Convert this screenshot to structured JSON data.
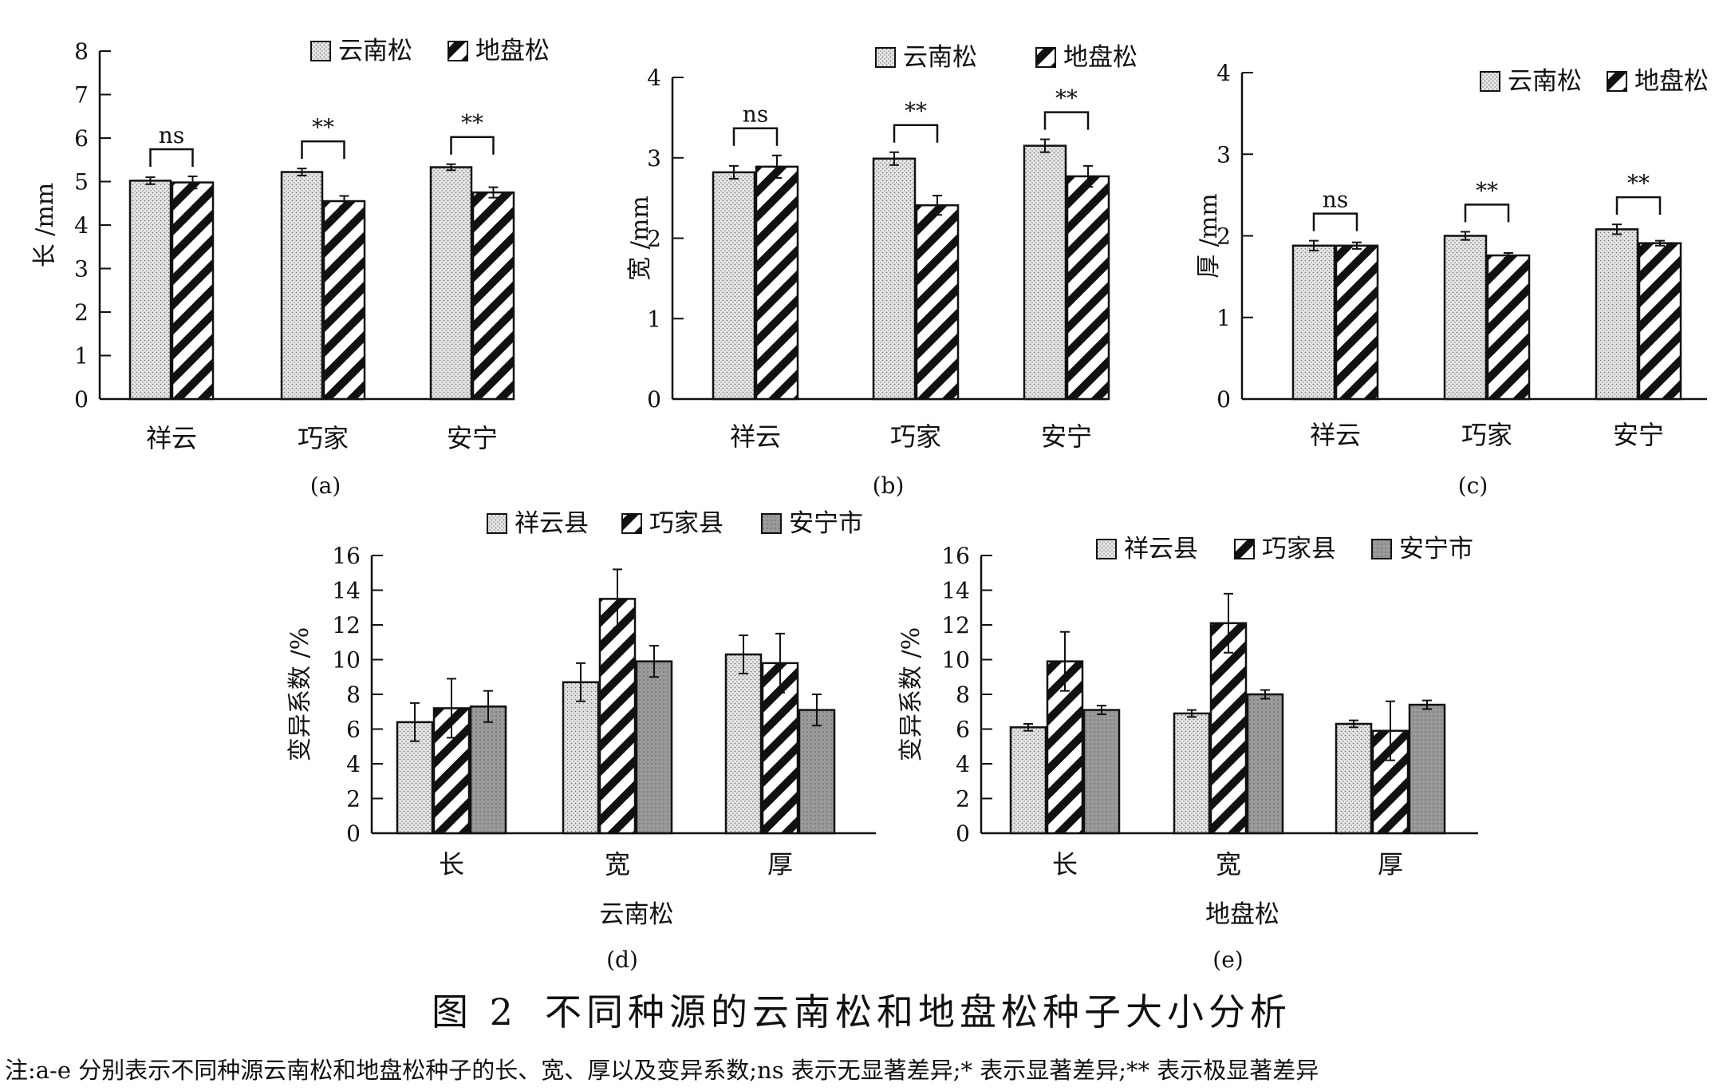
{
  "figure": {
    "number": "图 2",
    "title": "不同种源的云南松和地盘松种子大小分析",
    "note": "注:a-e 分别表示不同种源云南松和地盘松种子的长、宽、厚以及变异系数;ns 表示无显著差异;* 表示显著差异;** 表示极显著差异"
  },
  "colors": {
    "ink": "#111111",
    "dotted_fill": "#e6e6e6",
    "solid_fill": "#9a9a9a"
  },
  "chart_data": [
    {
      "id": "a",
      "panel_label": "(a)",
      "type": "bar",
      "ylabel": "长 /mm",
      "ylim": [
        0,
        8
      ],
      "yticks": [
        0,
        1,
        2,
        3,
        4,
        5,
        6,
        7,
        8
      ],
      "categories": [
        "祥云",
        "巧家",
        "安宁"
      ],
      "series": [
        {
          "name": "云南松",
          "pattern": "dotted",
          "values": [
            5.02,
            5.22,
            5.33
          ],
          "errors": [
            0.08,
            0.08,
            0.07
          ]
        },
        {
          "name": "地盘松",
          "pattern": "hatched",
          "values": [
            4.98,
            4.55,
            4.75
          ],
          "errors": [
            0.14,
            0.12,
            0.12
          ]
        }
      ],
      "significance": [
        "ns",
        "**",
        "**"
      ],
      "legend": "top-right"
    },
    {
      "id": "b",
      "panel_label": "(b)",
      "type": "bar",
      "ylabel": "宽 /mm",
      "ylim": [
        0,
        4
      ],
      "yticks": [
        0,
        1,
        2,
        3,
        4
      ],
      "categories": [
        "祥云",
        "巧家",
        "安宁"
      ],
      "series": [
        {
          "name": "云南松",
          "pattern": "dotted",
          "values": [
            2.82,
            2.99,
            3.15
          ],
          "errors": [
            0.08,
            0.08,
            0.08
          ]
        },
        {
          "name": "地盘松",
          "pattern": "hatched",
          "values": [
            2.89,
            2.41,
            2.77
          ],
          "errors": [
            0.14,
            0.12,
            0.13
          ]
        }
      ],
      "significance": [
        "ns",
        "**",
        "**"
      ],
      "legend": "top-right"
    },
    {
      "id": "c",
      "panel_label": "(c)",
      "type": "bar",
      "ylabel": "厚 /mm",
      "ylim": [
        0,
        4
      ],
      "yticks": [
        0,
        1,
        2,
        3,
        4
      ],
      "categories": [
        "祥云",
        "巧家",
        "安宁"
      ],
      "series": [
        {
          "name": "云南松",
          "pattern": "dotted",
          "values": [
            1.88,
            2.0,
            2.08
          ],
          "errors": [
            0.06,
            0.05,
            0.06
          ]
        },
        {
          "name": "地盘松",
          "pattern": "hatched",
          "values": [
            1.88,
            1.76,
            1.91
          ],
          "errors": [
            0.04,
            0.03,
            0.03
          ]
        }
      ],
      "significance": [
        "ns",
        "**",
        "**"
      ],
      "legend": "top-right"
    },
    {
      "id": "d",
      "panel_label": "(d)",
      "type": "bar",
      "ylabel": "变异系数 /%",
      "xlabel": "云南松",
      "ylim": [
        0,
        16
      ],
      "yticks": [
        0,
        2,
        4,
        6,
        8,
        10,
        12,
        14,
        16
      ],
      "categories": [
        "长",
        "宽",
        "厚"
      ],
      "series": [
        {
          "name": "祥云县",
          "pattern": "dotted",
          "values": [
            6.4,
            8.7,
            10.3
          ],
          "errors": [
            1.1,
            1.1,
            1.1
          ]
        },
        {
          "name": "巧家县",
          "pattern": "hatched",
          "values": [
            7.2,
            13.5,
            9.8
          ],
          "errors": [
            1.7,
            1.7,
            1.7
          ]
        },
        {
          "name": "安宁市",
          "pattern": "solid",
          "values": [
            7.3,
            9.9,
            7.1
          ],
          "errors": [
            0.9,
            0.9,
            0.9
          ]
        }
      ],
      "legend": "top"
    },
    {
      "id": "e",
      "panel_label": "(e)",
      "type": "bar",
      "ylabel": "变异系数 /%",
      "xlabel": "地盘松",
      "ylim": [
        0,
        16
      ],
      "yticks": [
        0,
        2,
        4,
        6,
        8,
        10,
        12,
        14,
        16
      ],
      "categories": [
        "长",
        "宽",
        "厚"
      ],
      "series": [
        {
          "name": "祥云县",
          "pattern": "dotted",
          "values": [
            6.1,
            6.9,
            6.3
          ],
          "errors": [
            0.2,
            0.2,
            0.2
          ]
        },
        {
          "name": "巧家县",
          "pattern": "hatched",
          "values": [
            9.9,
            12.1,
            5.9
          ],
          "errors": [
            1.7,
            1.7,
            1.7
          ]
        },
        {
          "name": "安宁市",
          "pattern": "solid",
          "values": [
            7.1,
            8.0,
            7.4
          ],
          "errors": [
            0.25,
            0.25,
            0.25
          ]
        }
      ],
      "legend": "top"
    }
  ]
}
